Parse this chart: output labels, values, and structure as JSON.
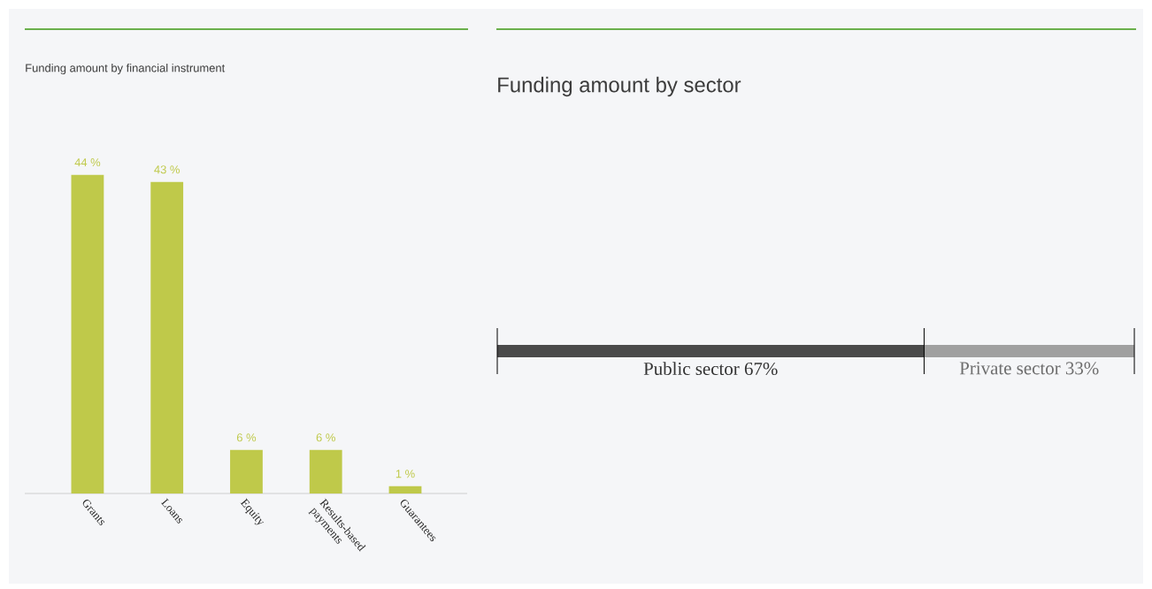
{
  "chart_data": [
    {
      "type": "bar",
      "title": "Funding amount by financial instrument",
      "categories": [
        "Grants",
        "Loans",
        "Equity",
        "Results-based payments",
        "Guarantees"
      ],
      "values": [
        44,
        43,
        6,
        6,
        1
      ],
      "value_labels": [
        "44 %",
        "43 %",
        "6 %",
        "6 %",
        "1 %"
      ],
      "color": "#bfc94a"
    },
    {
      "type": "bar",
      "title": "Funding amount by sector",
      "orientation": "horizontal",
      "stacked": true,
      "categories": [
        null
      ],
      "ref_lines": [
        {
          "axis": "x",
          "value": 0,
          "color": "#000000"
        },
        {
          "axis": "x",
          "value": 67,
          "color": "#000000"
        },
        {
          "axis": "x",
          "value": 100,
          "color": "#000000"
        }
      ],
      "series": [
        {
          "color": "#4a4a4a",
          "values": [
            67
          ],
          "value_labels": [
            "Public sector 67%"
          ]
        },
        {
          "color": "#a0a0a0",
          "values": [
            33
          ],
          "value_labels": [
            "Private sector 33%"
          ]
        }
      ]
    }
  ]
}
